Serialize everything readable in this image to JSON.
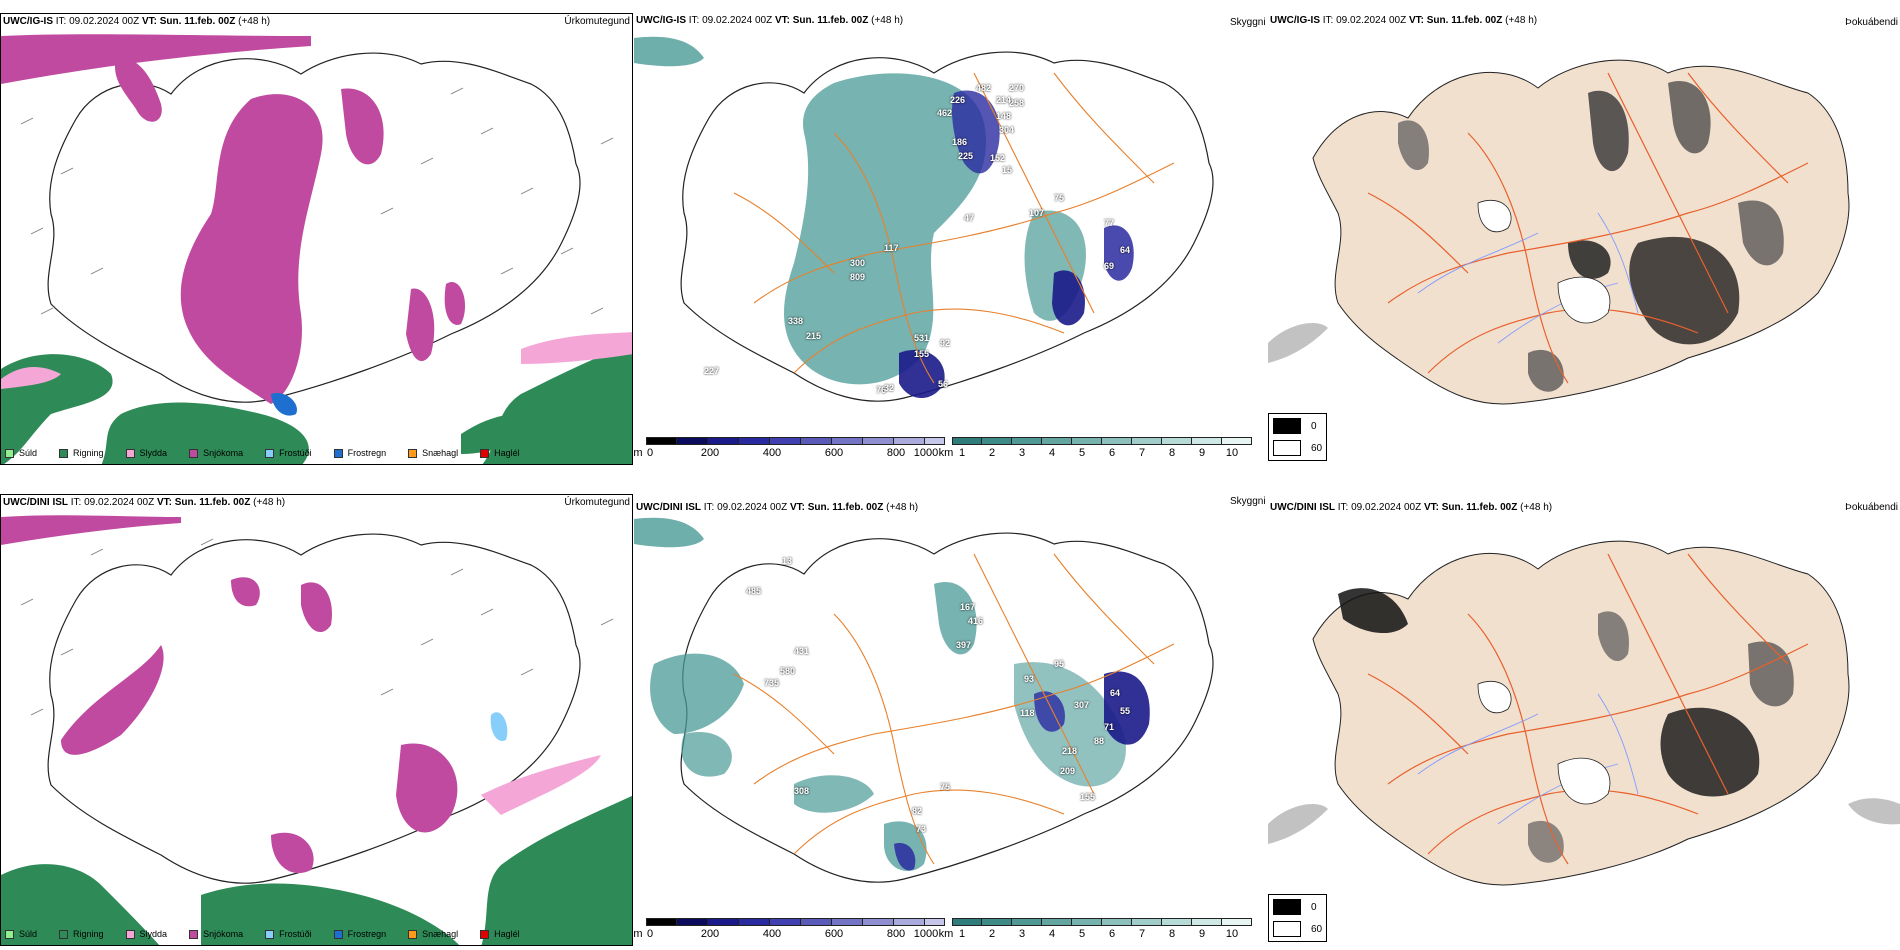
{
  "rows": [
    {
      "precip": {
        "model": "UWC/IG-IS",
        "it": "IT: 09.02.2024 00Z",
        "vt_label": "VT:",
        "vt": "Sun. 11.feb. 00Z",
        "lead": "(+48 h)",
        "right_label": "Úrkomutegund"
      },
      "vis": {
        "model": "UWC/IG-IS",
        "it": "IT: 09.02.2024 00Z",
        "vt_label": "VT:",
        "vt": "Sun. 11.feb. 00Z",
        "lead": "(+48 h)",
        "right_label": "Skyggni",
        "labels": [
          "270",
          "258",
          "482",
          "214",
          "226",
          "462",
          "148",
          "304",
          "186",
          "225",
          "152",
          "15",
          "75",
          "107",
          "47",
          "77",
          "117",
          "300",
          "809",
          "69",
          "64",
          "338",
          "215",
          "531",
          "92",
          "155",
          "227",
          "76",
          "56",
          "32"
        ]
      },
      "fog": {
        "model": "UWC/IG-IS",
        "it": "IT: 09.02.2024 00Z",
        "vt_label": "VT:",
        "vt": "Sun. 11.feb. 00Z",
        "lead": "(+48 h)",
        "right_label": "Þokuábendi"
      }
    },
    {
      "precip": {
        "model": "UWC/DINI ISL",
        "it": "IT: 09.02.2024 00Z",
        "vt_label": "VT:",
        "vt": "Sun. 11.feb. 00Z",
        "lead": "(+48 h)",
        "right_label": "Úrkomutegund"
      },
      "vis": {
        "model": "UWC/DINI ISL",
        "it": "IT: 09.02.2024 00Z",
        "vt_label": "VT:",
        "vt": "Sun. 11.feb. 00Z",
        "lead": "(+48 h)",
        "right_label": "Skyggni",
        "labels": [
          "13",
          "485",
          "431",
          "580",
          "735",
          "167",
          "416",
          "397",
          "93",
          "95",
          "118",
          "307",
          "64",
          "55",
          "71",
          "88",
          "218",
          "209",
          "155",
          "308",
          "82",
          "75",
          "73"
        ]
      },
      "fog": {
        "model": "UWC/DINI ISL",
        "it": "IT: 09.02.2024 00Z",
        "vt_label": "VT:",
        "vt": "Sun. 11.feb. 00Z",
        "lead": "(+48 h)",
        "right_label": "Þokuábendi"
      }
    }
  ],
  "precip_legend": [
    {
      "label": "Súld",
      "color": "#90ee90"
    },
    {
      "label": "Rigning",
      "color": "#2e8b57"
    },
    {
      "label": "Slydda",
      "color": "#f4a6d7"
    },
    {
      "label": "Snjókoma",
      "color": "#c04aa0"
    },
    {
      "label": "Frostúði",
      "color": "#87cefa"
    },
    {
      "label": "Frostregn",
      "color": "#1e6fd0"
    },
    {
      "label": "Snæhagl",
      "color": "#ff9a1a"
    },
    {
      "label": "Haglél",
      "color": "#e00000"
    }
  ],
  "vis_scale_m": {
    "unit": "m",
    "ticks": [
      "0",
      "200",
      "400",
      "600",
      "800",
      "1000"
    ],
    "colors": [
      "#000000",
      "#0b0b5e",
      "#1a1a8a",
      "#2a2aa0",
      "#4040b0",
      "#5a5ab8",
      "#7474c4",
      "#8e8ed0",
      "#aaaadc",
      "#c6c6ea"
    ]
  },
  "vis_scale_km": {
    "unit": "km",
    "ticks": [
      "1",
      "2",
      "3",
      "4",
      "5",
      "6",
      "7",
      "8",
      "9",
      "10"
    ],
    "colors": [
      "#2e7d7a",
      "#3e8a87",
      "#4f9894",
      "#62a5a1",
      "#76b2ae",
      "#8bc0bc",
      "#a0cdc9",
      "#b6dbd7",
      "#cde8e5",
      "#e6f4f2"
    ]
  },
  "fog_legend": [
    {
      "label": "0",
      "color": "#000000"
    },
    {
      "label": "60",
      "color": "#ffffff"
    }
  ],
  "colors": {
    "land": "#f2e0cf",
    "roads": "#e8602c",
    "rivers": "#7f9bff",
    "snow": "#c04aa0",
    "rain": "#2e8b57",
    "vis_teal": "#4a9a96",
    "vis_navy": "#2a2aa0"
  }
}
